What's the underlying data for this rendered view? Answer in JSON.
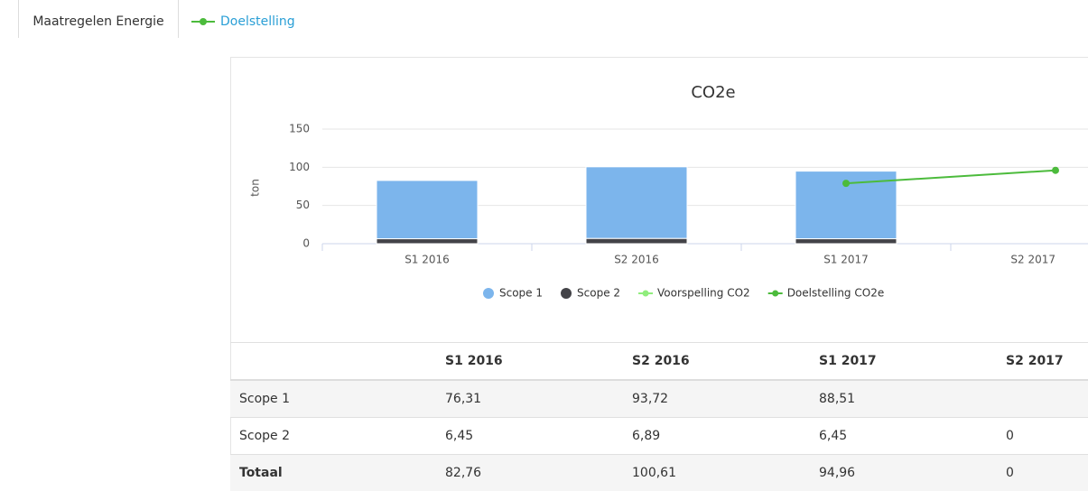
{
  "tabs": [
    "Maatregelen Energie",
    "Doelstelling"
  ],
  "chart_data": {
    "type": "bar",
    "stacked": true,
    "title": "CO2e",
    "ylabel": "ton",
    "categories": [
      "S1 2016",
      "S2 2016",
      "S1 2017",
      "S2 2017"
    ],
    "ylim": [
      0,
      150
    ],
    "yticks": [
      0,
      50,
      100,
      150
    ],
    "grid": true,
    "legend": "bottom",
    "series": [
      {
        "name": "Scope 1",
        "color": "#7cb5ec",
        "kind": "bar",
        "values": [
          76.31,
          93.72,
          88.51,
          null
        ]
      },
      {
        "name": "Scope 2",
        "color": "#434348",
        "kind": "bar",
        "values": [
          6.45,
          6.89,
          6.45,
          0
        ]
      },
      {
        "name": "Voorspelling CO2",
        "color": "#90ed7d",
        "kind": "line",
        "values": [
          null,
          null,
          null,
          null
        ]
      },
      {
        "name": "Doelstelling CO2e",
        "color": "#4cbb3c",
        "kind": "line",
        "values": [
          null,
          null,
          79,
          96
        ]
      }
    ]
  },
  "table": {
    "rows": [
      {
        "label": "Scope 1",
        "cells": [
          "76,31",
          "93,72",
          "88,51",
          null
        ]
      },
      {
        "label": "Scope 2",
        "cells": [
          "6,45",
          "6,89",
          "6,45",
          "0"
        ]
      },
      {
        "label": "Totaal",
        "cells": [
          "82,76",
          "100,61",
          "94,96",
          "0"
        ]
      }
    ]
  }
}
